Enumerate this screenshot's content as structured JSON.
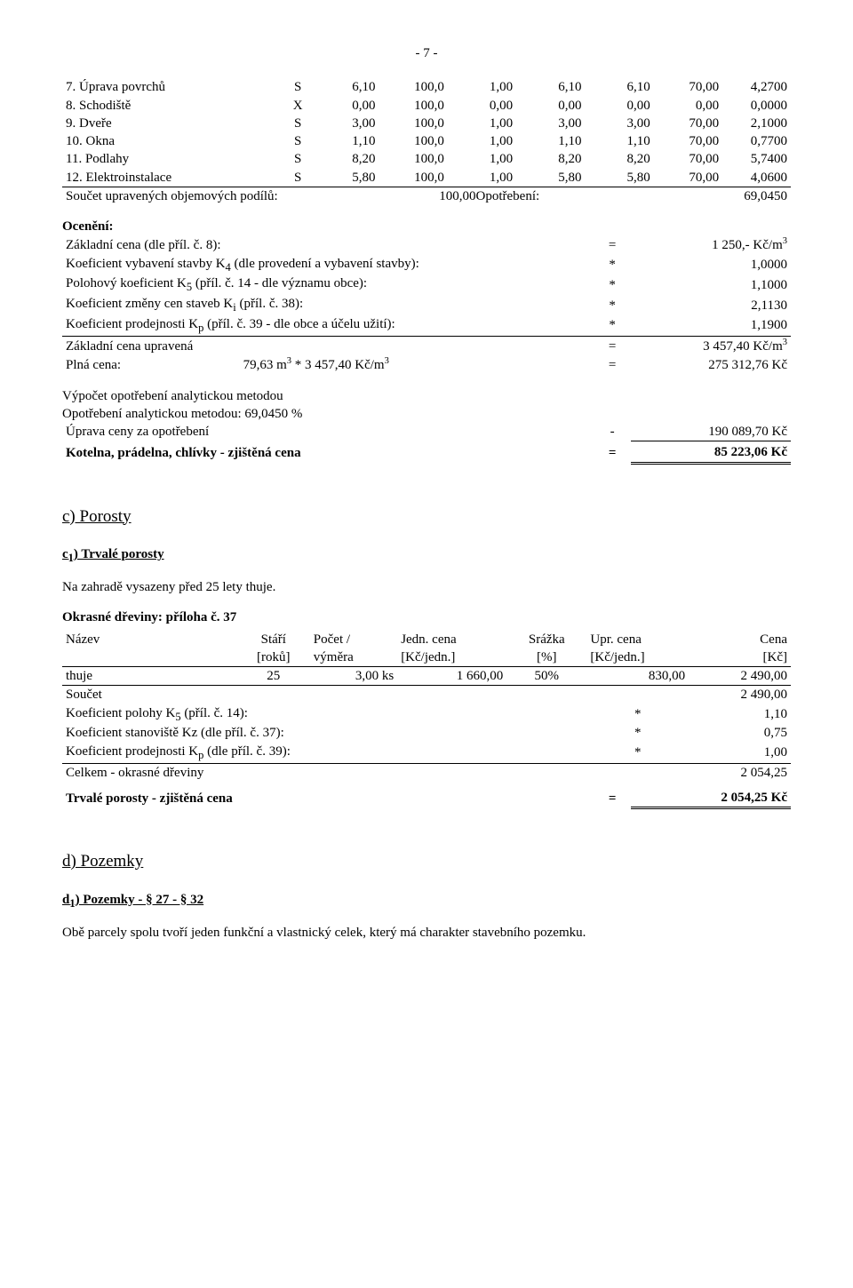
{
  "page_number": "- 7 -",
  "items_table": {
    "rows": [
      {
        "label": "7. Úprava povrchů",
        "code": "S",
        "c1": "6,10",
        "c2": "100,0",
        "c3": "1,00",
        "c4": "6,10",
        "c5": "6,10",
        "c6": "70,00",
        "c7": "4,2700"
      },
      {
        "label": "8. Schodiště",
        "code": "X",
        "c1": "0,00",
        "c2": "100,0",
        "c3": "0,00",
        "c4": "0,00",
        "c5": "0,00",
        "c6": "0,00",
        "c7": "0,0000"
      },
      {
        "label": "9. Dveře",
        "code": "S",
        "c1": "3,00",
        "c2": "100,0",
        "c3": "1,00",
        "c4": "3,00",
        "c5": "3,00",
        "c6": "70,00",
        "c7": "2,1000"
      },
      {
        "label": "10. Okna",
        "code": "S",
        "c1": "1,10",
        "c2": "100,0",
        "c3": "1,00",
        "c4": "1,10",
        "c5": "1,10",
        "c6": "70,00",
        "c7": "0,7700"
      },
      {
        "label": "11. Podlahy",
        "code": "S",
        "c1": "8,20",
        "c2": "100,0",
        "c3": "1,00",
        "c4": "8,20",
        "c5": "8,20",
        "c6": "70,00",
        "c7": "5,7400"
      },
      {
        "label": "12. Elektroinstalace",
        "code": "S",
        "c1": "5,80",
        "c2": "100,0",
        "c3": "1,00",
        "c4": "5,80",
        "c5": "5,80",
        "c6": "70,00",
        "c7": "4,0600"
      }
    ],
    "sum_label": "Součet upravených objemových podílů:",
    "sum_mid": "100,00Opotřebení:",
    "sum_val": "69,0450"
  },
  "oceneni_heading": "Ocenění:",
  "base_price": {
    "label": "Základní cena (dle příl. č. 8):",
    "op": "=",
    "val": "1 250,- Kč/m",
    "sup": "3"
  },
  "coeffs": [
    {
      "label": "Koeficient vybavení stavby K",
      "sub": "4",
      "after": " (dle provedení a vybavení stavby):",
      "op": "*",
      "val": "1,0000"
    },
    {
      "label": "Polohový koeficient K",
      "sub": "5",
      "after": " (příl. č. 14 - dle významu obce):",
      "op": "*",
      "val": "1,1000"
    },
    {
      "label": "Koeficient změny cen staveb K",
      "sub": "i",
      "after": " (příl. č. 38):",
      "op": "*",
      "val": "2,1130"
    },
    {
      "label": "Koeficient prodejnosti K",
      "sub": "p",
      "after": " (příl. č. 39 - dle obce a účelu užití):",
      "op": "*",
      "val": "1,1900"
    }
  ],
  "adjusted_price": {
    "label": "Základní cena upravená",
    "op": "=",
    "val": "3 457,40 Kč/m",
    "sup": "3"
  },
  "full_price": {
    "label": "Plná cena:",
    "mid": "79,63 m",
    "mid_sup": "3",
    "mid2": " * 3 457,40 Kč/m",
    "mid2_sup": "3",
    "op": "=",
    "val": "275 312,76 Kč"
  },
  "wear_calc_heading_1": "Výpočet opotřebení analytickou metodou",
  "wear_calc_heading_2": "Opotřebení analytickou metodou: 69,0450 %",
  "wear_row": {
    "label": "Úprava ceny za opotřebení",
    "op": "-",
    "val": "190 089,70 Kč"
  },
  "final_row": {
    "label": "Kotelna, prádelna, chlívky - zjištěná cena",
    "op": "=",
    "val": "85 223,06 Kč"
  },
  "porosty_heading": "c) Porosty",
  "c1_heading": "c",
  "c1_sub": "1",
  "c1_after": ") Trvalé porosty",
  "c1_text": "Na zahradě vysazeny před 25 lety thuje.",
  "dreviny_title": "Okrasné dřeviny: příloha č. 37",
  "dreviny_header": {
    "c0": "Název",
    "c1a": "Stáří",
    "c1b": "[roků]",
    "c2a": "Počet /",
    "c2b": "výměra",
    "c3a": "Jedn. cena",
    "c3b": "[Kč/jedn.]",
    "c4a": "Srážka",
    "c4b": "[%]",
    "c5a": "Upr. cena",
    "c5b": "[Kč/jedn.]",
    "c6a": "Cena",
    "c6b": "[Kč]"
  },
  "dreviny_row": {
    "name": "thuje",
    "stari": "25",
    "pocet": "3,00 ks",
    "jedn": "1 660,00",
    "srazka": "50%",
    "upr": "830,00",
    "cena": "2 490,00"
  },
  "dreviny_sum": {
    "label": "Součet",
    "val": "2 490,00"
  },
  "dreviny_coeffs": [
    {
      "label": "Koeficient polohy K",
      "sub": "5",
      "after": " (příl. č. 14):",
      "op": "*",
      "val": "1,10"
    },
    {
      "label": "Koeficient stanoviště Kz (dle příl. č. 37):",
      "op": "*",
      "val": "0,75"
    },
    {
      "label": "Koeficient prodejnosti K",
      "sub": "p",
      "after": " (dle příl. č. 39):",
      "op": "*",
      "val": "1,00"
    }
  ],
  "dreviny_total": {
    "label": "Celkem - okrasné dřeviny",
    "val": "2 054,25"
  },
  "trvale_final": {
    "label": "Trvalé porosty - zjištěná cena",
    "op": "=",
    "val": "2 054,25 Kč"
  },
  "pozemky_heading": "d) Pozemky",
  "d1_heading": "d",
  "d1_sub": "1",
  "d1_after": ") Pozemky  - § 27 - § 32",
  "pozemky_text": "Obě parcely spolu tvoří jeden funkční a vlastnický celek, který má charakter stavebního pozemku."
}
